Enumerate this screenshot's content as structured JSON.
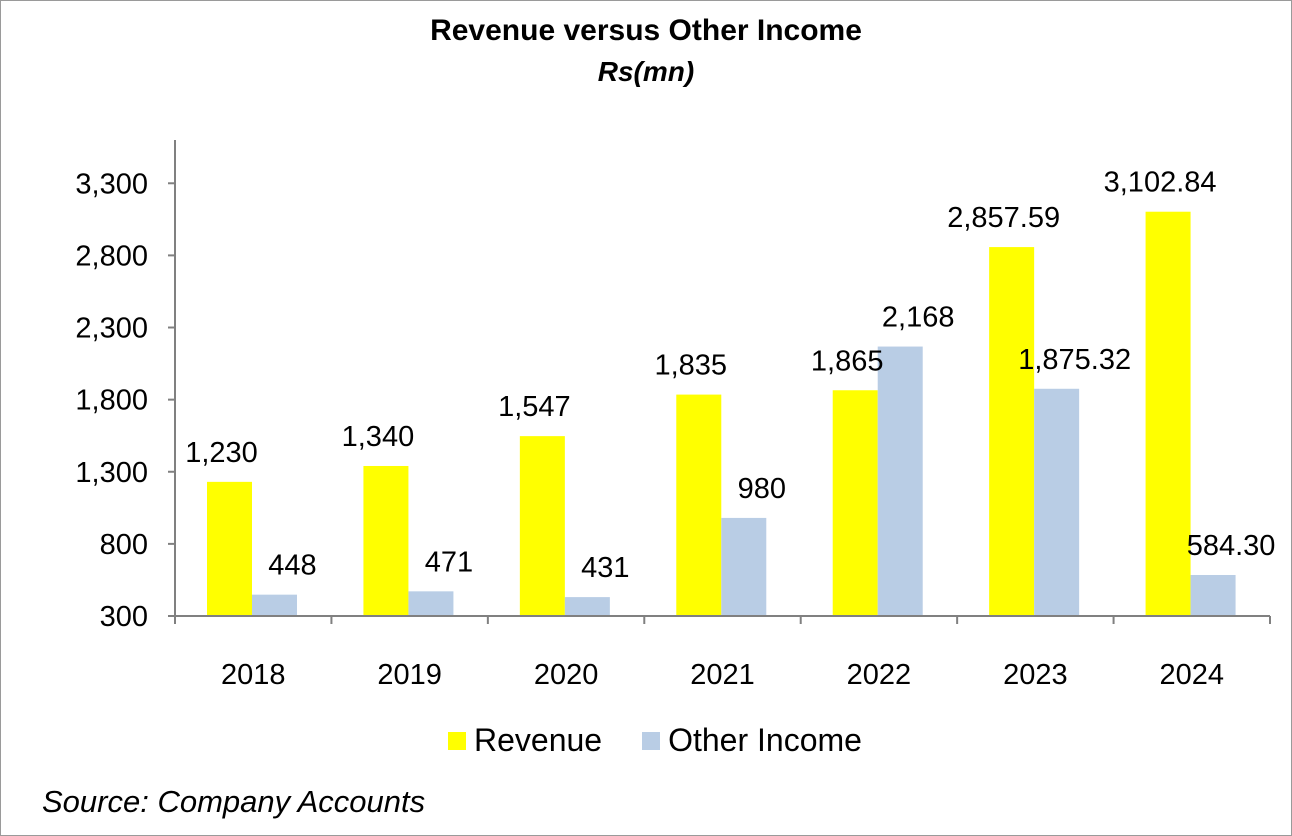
{
  "chart_data": {
    "type": "bar",
    "title": "Revenue versus Other Income",
    "subtitle": "Rs(mn)",
    "categories": [
      "2018",
      "2019",
      "2020",
      "2021",
      "2022",
      "2023",
      "2024"
    ],
    "series": [
      {
        "name": "Revenue",
        "color": "#ffff00",
        "values": [
          1230,
          1340,
          1547,
          1835,
          1865,
          2857.59,
          3102.84
        ],
        "labels": [
          "1,230",
          "1,340",
          "1,547",
          "1,835",
          "1,865",
          "2,857.59",
          "3,102.84"
        ]
      },
      {
        "name": "Other Income",
        "color": "#b9cde5",
        "values": [
          448,
          471,
          431,
          980,
          2168,
          1875.32,
          584.3
        ],
        "labels": [
          "448",
          "471",
          "431",
          "980",
          "2,168",
          "1,875.32",
          "584.30"
        ]
      }
    ],
    "ylim": [
      300,
      3600
    ],
    "yticks": [
      300,
      800,
      1300,
      1800,
      2300,
      2800,
      3300
    ],
    "ytick_labels": [
      "300",
      "800",
      "1,300",
      "1,800",
      "2,300",
      "2,800",
      "3,300"
    ],
    "grid": false,
    "legend_position": "bottom"
  },
  "source": "Source: Company Accounts"
}
